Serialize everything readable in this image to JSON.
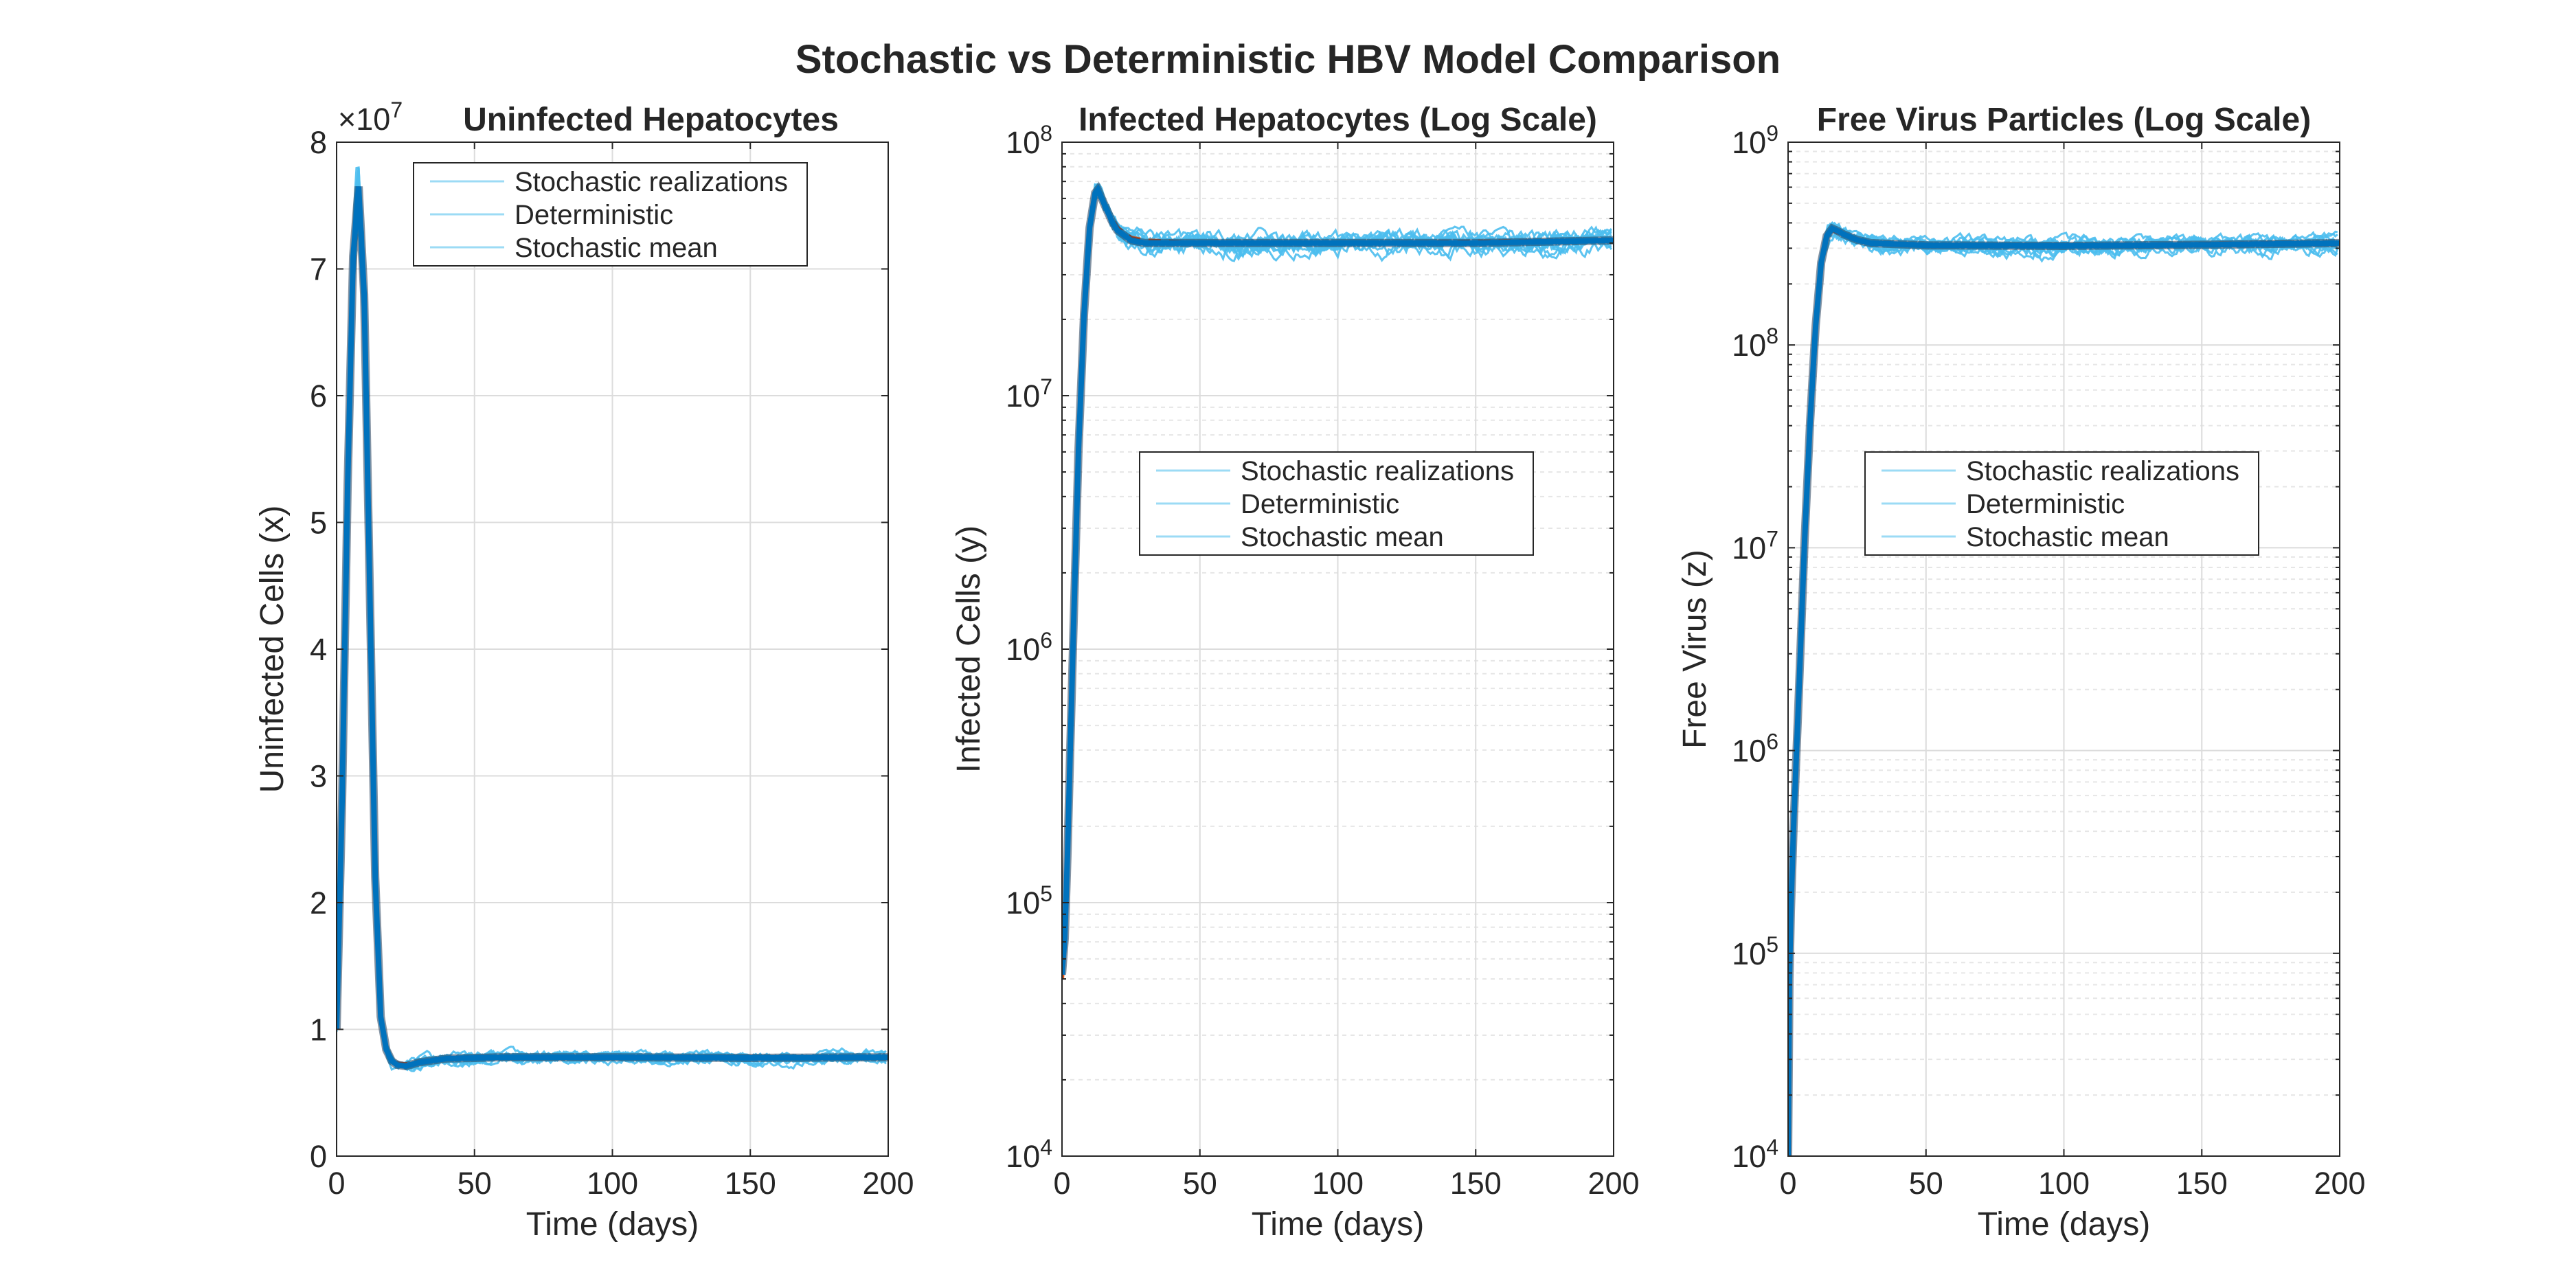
{
  "figure": {
    "title": "Stochastic vs Deterministic HBV Model Comparison",
    "colors": {
      "stochastic": "#4dbeee",
      "deterministic": "#d95319",
      "mean": "#0072bd",
      "grid": "#dcdcdc",
      "axis": "#262626",
      "text": "#262626"
    }
  },
  "chart_data": [
    {
      "id": "uninfected",
      "type": "line",
      "title": "Uninfected Hepatocytes",
      "xlabel": "Time (days)",
      "ylabel": "Uninfected Cells (x)",
      "yscale": "linear",
      "exponent_label": "×10^7",
      "xlim": [
        0,
        200
      ],
      "ylim": [
        0,
        80000000
      ],
      "xticks": [
        0,
        50,
        100,
        150,
        200
      ],
      "xtick_labels": [
        "0",
        "50",
        "100",
        "150",
        "200"
      ],
      "yticks": [
        0,
        10000000,
        20000000,
        30000000,
        40000000,
        50000000,
        60000000,
        70000000,
        80000000
      ],
      "ytick_labels": [
        "0",
        "1",
        "2",
        "3",
        "4",
        "5",
        "6",
        "7",
        "8"
      ],
      "legend": {
        "position": "top-center",
        "entries": [
          "Stochastic realizations",
          "Deterministic",
          "Stochastic mean"
        ]
      },
      "series": [
        {
          "name": "Stochastic realizations",
          "count": 10,
          "noise": 0.05,
          "peak": 78000000
        },
        {
          "name": "Deterministic",
          "x": [
            0,
            2,
            4,
            6,
            8,
            10,
            12,
            14,
            16,
            18,
            20,
            22,
            25,
            30,
            40,
            60,
            100,
            150,
            200
          ],
          "y": [
            10000000,
            28000000,
            52000000,
            70000000,
            76000000,
            68000000,
            45000000,
            22000000,
            11000000,
            8500000,
            7600000,
            7300000,
            7250000,
            7450000,
            7750000,
            7850000,
            7800000,
            7800000,
            7800000
          ]
        },
        {
          "name": "Stochastic mean",
          "x": [
            0,
            2,
            4,
            6,
            8,
            10,
            12,
            14,
            16,
            18,
            20,
            22,
            25,
            30,
            40,
            60,
            100,
            150,
            200
          ],
          "y": [
            10000000,
            28000000,
            53000000,
            71000000,
            76500000,
            68000000,
            45000000,
            22000000,
            11000000,
            8400000,
            7500000,
            7200000,
            7100000,
            7400000,
            7700000,
            7800000,
            7800000,
            7750000,
            7800000
          ]
        }
      ]
    },
    {
      "id": "infected",
      "type": "line",
      "title": "Infected Hepatocytes (Log Scale)",
      "xlabel": "Time (days)",
      "ylabel": "Infected Cells (y)",
      "yscale": "log",
      "xlim": [
        0,
        200
      ],
      "ylim": [
        10000,
        100000000
      ],
      "xticks": [
        0,
        50,
        100,
        150,
        200
      ],
      "xtick_labels": [
        "0",
        "50",
        "100",
        "150",
        "200"
      ],
      "yticks": [
        10000,
        100000,
        1000000,
        10000000,
        100000000
      ],
      "ytick_labels": [
        "10^4",
        "10^5",
        "10^6",
        "10^7",
        "10^8"
      ],
      "legend": {
        "position": "center",
        "entries": [
          "Stochastic realizations",
          "Deterministic",
          "Stochastic mean"
        ]
      },
      "series": [
        {
          "name": "Stochastic realizations",
          "count": 10,
          "noise": 0.08,
          "peak": 68000000
        },
        {
          "name": "Deterministic",
          "x": [
            0,
            1,
            2,
            4,
            6,
            8,
            10,
            12,
            13,
            15,
            18,
            20,
            25,
            30,
            50,
            100,
            150,
            200
          ],
          "y": [
            50000,
            70000,
            150000,
            1000000,
            6000000,
            20000000,
            45000000,
            62000000,
            64000000,
            58000000,
            50000000,
            46000000,
            42000000,
            41000000,
            40000000,
            40000000,
            40500000,
            41000000
          ]
        },
        {
          "name": "Stochastic mean",
          "x": [
            0,
            1,
            2,
            4,
            6,
            8,
            10,
            12,
            13,
            15,
            18,
            20,
            25,
            30,
            50,
            100,
            150,
            200
          ],
          "y": [
            52000,
            72000,
            155000,
            1050000,
            6200000,
            21000000,
            46000000,
            63000000,
            65000000,
            58000000,
            49000000,
            45000000,
            41000000,
            40000000,
            40000000,
            40000000,
            40000000,
            41000000
          ]
        }
      ]
    },
    {
      "id": "virus",
      "type": "line",
      "title": "Free Virus Particles (Log Scale)",
      "xlabel": "Time (days)",
      "ylabel": "Free Virus (z)",
      "yscale": "log",
      "xlim": [
        0,
        200
      ],
      "ylim": [
        10000,
        1000000000
      ],
      "xticks": [
        0,
        50,
        100,
        150,
        200
      ],
      "xtick_labels": [
        "0",
        "50",
        "100",
        "150",
        "200"
      ],
      "yticks": [
        10000,
        100000,
        1000000,
        10000000,
        100000000,
        1000000000
      ],
      "ytick_labels": [
        "10^4",
        "10^5",
        "10^6",
        "10^7",
        "10^8",
        "10^9"
      ],
      "legend": {
        "position": "center",
        "entries": [
          "Stochastic realizations",
          "Deterministic",
          "Stochastic mean"
        ]
      },
      "series": [
        {
          "name": "Stochastic realizations",
          "count": 10,
          "noise": 0.08,
          "peak": 400000000
        },
        {
          "name": "Deterministic",
          "x": [
            0,
            0.3,
            1,
            2,
            4,
            6,
            8,
            10,
            12,
            14,
            16,
            18,
            20,
            25,
            30,
            50,
            100,
            150,
            200
          ],
          "y": [
            10000,
            50000,
            150000,
            400000,
            2000000,
            10000000,
            40000000,
            120000000,
            250000000,
            340000000,
            370000000,
            360000000,
            350000000,
            330000000,
            320000000,
            310000000,
            310000000,
            315000000,
            320000000
          ]
        },
        {
          "name": "Stochastic mean",
          "x": [
            0,
            0.3,
            1,
            2,
            4,
            6,
            8,
            10,
            12,
            14,
            16,
            18,
            20,
            25,
            30,
            50,
            100,
            150,
            200
          ],
          "y": [
            10000,
            55000,
            160000,
            420000,
            2100000,
            11000000,
            42000000,
            125000000,
            255000000,
            345000000,
            375000000,
            365000000,
            352000000,
            330000000,
            318000000,
            310000000,
            308000000,
            312000000,
            318000000
          ]
        }
      ]
    }
  ]
}
